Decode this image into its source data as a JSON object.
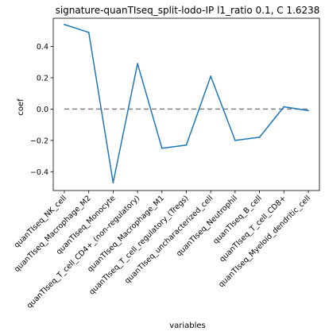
{
  "chart_data": {
    "type": "line",
    "title": "signature-quanTIseq_split-lodo-IP l1_ratio 0.1, C 1.6238",
    "xlabel": "variables",
    "ylabel": "coef",
    "categories": [
      "quanTIseq_NK_cell",
      "quanTIseq_Macrophage_M2",
      "quanTIseq_Monocyte",
      "quanTIseq_T_cell_CD4+_(non-regulatory)",
      "quanTIseq_Macrophage_M1",
      "quanTIseq_T_cell_regulatory_(Tregs)",
      "quanTIseq_uncharacterized_cell",
      "quanTIseq_Neutrophil",
      "quanTIseq_B_cell",
      "quanTIseq_T_cell_CD8+",
      "quanTIseq_Myeloid_dendritic_cell"
    ],
    "series": [
      {
        "color": "#1f77b4",
        "values": [
          0.54,
          0.49,
          -0.47,
          0.29,
          -0.25,
          -0.23,
          0.21,
          -0.2,
          -0.18,
          0.015,
          -0.01
        ]
      }
    ],
    "reference_line": {
      "y": 0.0,
      "style": "dashed",
      "color": "#808080"
    },
    "ylim": [
      -0.52,
      0.58
    ],
    "yticks": [
      -0.4,
      -0.2,
      0.0,
      0.2,
      0.4
    ],
    "ytick_labels": [
      "−0.4",
      "−0.2",
      "0.0",
      "0.2",
      "0.4"
    ],
    "grid": false
  }
}
